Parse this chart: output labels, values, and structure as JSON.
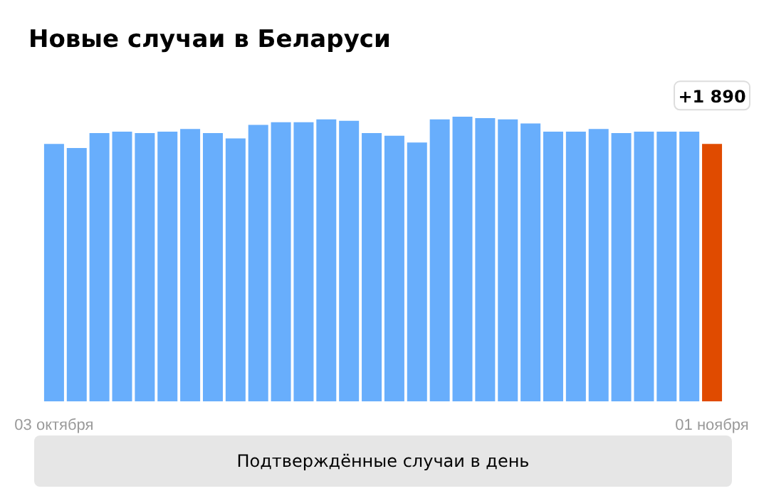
{
  "chart_data": {
    "type": "bar",
    "title": "Новые случаи в Беларуси",
    "categories": [
      "03 октября",
      null,
      null,
      null,
      null,
      null,
      null,
      null,
      null,
      null,
      null,
      null,
      null,
      null,
      null,
      null,
      null,
      null,
      null,
      null,
      null,
      null,
      null,
      null,
      null,
      null,
      null,
      null,
      null,
      "01 ноября"
    ],
    "values": [
      1890,
      1860,
      1970,
      1980,
      1970,
      1980,
      2000,
      1970,
      1930,
      2030,
      2050,
      2050,
      2070,
      2060,
      1970,
      1950,
      1900,
      2070,
      2090,
      2080,
      2070,
      2040,
      1980,
      1980,
      2000,
      1970,
      1980,
      1980,
      1980,
      1890
    ],
    "colors": [
      "#68aefc",
      "#68aefc",
      "#68aefc",
      "#68aefc",
      "#68aefc",
      "#68aefc",
      "#68aefc",
      "#68aefc",
      "#68aefc",
      "#68aefc",
      "#68aefc",
      "#68aefc",
      "#68aefc",
      "#68aefc",
      "#68aefc",
      "#68aefc",
      "#68aefc",
      "#68aefc",
      "#68aefc",
      "#68aefc",
      "#68aefc",
      "#68aefc",
      "#68aefc",
      "#68aefc",
      "#68aefc",
      "#68aefc",
      "#68aefc",
      "#68aefc",
      "#68aefc",
      "#e04b00"
    ],
    "value_labels": [
      null,
      null,
      null,
      null,
      null,
      null,
      null,
      null,
      null,
      null,
      null,
      null,
      null,
      null,
      null,
      null,
      null,
      null,
      null,
      null,
      null,
      null,
      null,
      null,
      null,
      null,
      null,
      null,
      null,
      "+1 890"
    ],
    "annotations": [
      "Подтверждённые случаи в день"
    ]
  }
}
